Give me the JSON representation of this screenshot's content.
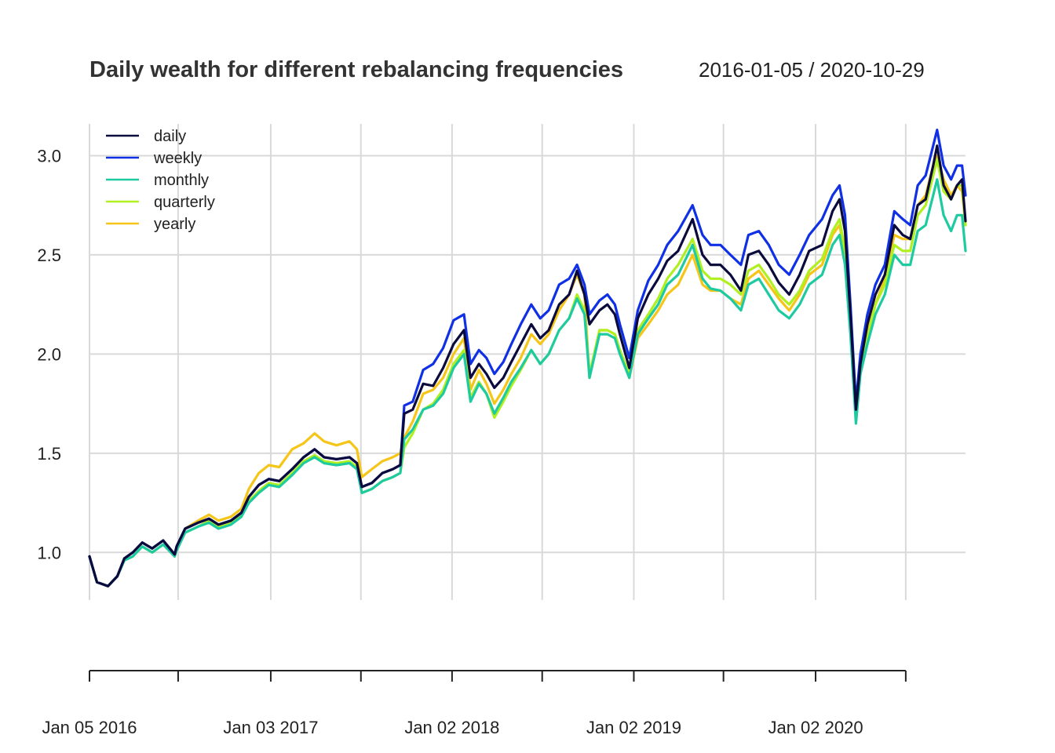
{
  "chart_data": {
    "type": "line",
    "title": "Daily wealth for different rebalancing frequencies",
    "date_range": "2016-01-05 / 2020-10-29",
    "x_ticks": [
      {
        "date": "2016-01-05",
        "label": "Jan 05 2016"
      },
      {
        "date": "2016-07-01",
        "label": ""
      },
      {
        "date": "2017-01-03",
        "label": "Jan 03 2017"
      },
      {
        "date": "2017-07-03",
        "label": ""
      },
      {
        "date": "2018-01-02",
        "label": "Jan 02 2018"
      },
      {
        "date": "2018-07-02",
        "label": ""
      },
      {
        "date": "2019-01-02",
        "label": "Jan 02 2019"
      },
      {
        "date": "2019-07-01",
        "label": ""
      },
      {
        "date": "2020-01-02",
        "label": "Jan 02 2020"
      },
      {
        "date": "2020-07-01",
        "label": ""
      }
    ],
    "y_ticks": [
      1.0,
      1.5,
      2.0,
      2.5,
      3.0
    ],
    "y_tick_labels": [
      "1.0",
      "1.5",
      "2.0",
      "2.5",
      "3.0"
    ],
    "ylim": [
      0.76,
      3.16
    ],
    "xlim": [
      "2016-01-05",
      "2020-10-29"
    ],
    "grid": true,
    "legend_position": "top-left",
    "x": [
      "2016-01-05",
      "2016-01-20",
      "2016-02-11",
      "2016-03-01",
      "2016-03-15",
      "2016-04-01",
      "2016-04-20",
      "2016-05-10",
      "2016-06-01",
      "2016-06-24",
      "2016-06-28",
      "2016-07-15",
      "2016-08-10",
      "2016-09-01",
      "2016-09-20",
      "2016-10-15",
      "2016-11-05",
      "2016-11-20",
      "2016-12-10",
      "2016-12-30",
      "2017-01-20",
      "2017-02-15",
      "2017-03-10",
      "2017-04-01",
      "2017-04-20",
      "2017-05-15",
      "2017-06-10",
      "2017-06-25",
      "2017-07-05",
      "2017-07-25",
      "2017-08-15",
      "2017-09-05",
      "2017-09-20",
      "2017-09-28",
      "2017-10-15",
      "2017-11-05",
      "2017-11-25",
      "2017-12-15",
      "2018-01-05",
      "2018-01-26",
      "2018-02-08",
      "2018-02-25",
      "2018-03-12",
      "2018-03-28",
      "2018-04-15",
      "2018-05-01",
      "2018-05-20",
      "2018-06-10",
      "2018-06-28",
      "2018-07-15",
      "2018-08-05",
      "2018-08-25",
      "2018-09-10",
      "2018-09-25",
      "2018-10-05",
      "2018-10-25",
      "2018-11-10",
      "2018-11-25",
      "2018-12-05",
      "2018-12-24",
      "2019-01-10",
      "2019-01-31",
      "2019-02-20",
      "2019-03-10",
      "2019-04-01",
      "2019-04-30",
      "2019-05-20",
      "2019-06-05",
      "2019-06-25",
      "2019-07-15",
      "2019-08-05",
      "2019-08-20",
      "2019-09-10",
      "2019-09-30",
      "2019-10-20",
      "2019-11-10",
      "2019-12-01",
      "2019-12-20",
      "2020-01-15",
      "2020-02-05",
      "2020-02-19",
      "2020-03-01",
      "2020-03-12",
      "2020-03-23",
      "2020-04-01",
      "2020-04-15",
      "2020-05-01",
      "2020-05-20",
      "2020-06-08",
      "2020-06-25",
      "2020-07-10",
      "2020-07-25",
      "2020-08-10",
      "2020-08-25",
      "2020-09-02",
      "2020-09-15",
      "2020-09-30",
      "2020-10-12",
      "2020-10-22",
      "2020-10-29"
    ],
    "series": [
      {
        "name": "daily",
        "color": "#0a0a3c",
        "values": [
          0.98,
          0.85,
          0.83,
          0.88,
          0.97,
          1.0,
          1.05,
          1.02,
          1.06,
          0.99,
          1.03,
          1.12,
          1.15,
          1.17,
          1.14,
          1.16,
          1.2,
          1.28,
          1.34,
          1.37,
          1.36,
          1.42,
          1.48,
          1.52,
          1.48,
          1.47,
          1.48,
          1.45,
          1.33,
          1.35,
          1.4,
          1.42,
          1.44,
          1.7,
          1.72,
          1.85,
          1.84,
          1.93,
          2.05,
          2.12,
          1.88,
          1.95,
          1.9,
          1.83,
          1.88,
          1.96,
          2.05,
          2.15,
          2.08,
          2.12,
          2.25,
          2.3,
          2.42,
          2.3,
          2.15,
          2.22,
          2.25,
          2.2,
          2.1,
          1.93,
          2.18,
          2.3,
          2.38,
          2.47,
          2.52,
          2.68,
          2.5,
          2.45,
          2.45,
          2.4,
          2.32,
          2.5,
          2.52,
          2.45,
          2.36,
          2.3,
          2.4,
          2.52,
          2.55,
          2.72,
          2.78,
          2.62,
          2.2,
          1.72,
          1.95,
          2.15,
          2.3,
          2.4,
          2.65,
          2.6,
          2.58,
          2.75,
          2.78,
          2.95,
          3.05,
          2.85,
          2.78,
          2.85,
          2.88,
          2.67
        ]
      },
      {
        "name": "weekly",
        "color": "#1030e6",
        "values": [
          0.98,
          0.85,
          0.83,
          0.88,
          0.97,
          1.0,
          1.05,
          1.02,
          1.06,
          0.99,
          1.03,
          1.12,
          1.15,
          1.17,
          1.14,
          1.16,
          1.2,
          1.28,
          1.34,
          1.37,
          1.36,
          1.42,
          1.48,
          1.52,
          1.48,
          1.47,
          1.48,
          1.45,
          1.33,
          1.35,
          1.4,
          1.42,
          1.44,
          1.74,
          1.76,
          1.92,
          1.95,
          2.03,
          2.17,
          2.2,
          1.95,
          2.02,
          1.98,
          1.9,
          1.96,
          2.05,
          2.15,
          2.25,
          2.18,
          2.22,
          2.35,
          2.38,
          2.45,
          2.35,
          2.2,
          2.27,
          2.3,
          2.25,
          2.15,
          1.98,
          2.22,
          2.37,
          2.45,
          2.55,
          2.62,
          2.75,
          2.6,
          2.55,
          2.55,
          2.5,
          2.45,
          2.6,
          2.62,
          2.55,
          2.45,
          2.4,
          2.5,
          2.6,
          2.68,
          2.8,
          2.85,
          2.7,
          2.25,
          1.75,
          2.0,
          2.2,
          2.35,
          2.45,
          2.72,
          2.68,
          2.65,
          2.85,
          2.9,
          3.05,
          3.13,
          2.95,
          2.88,
          2.95,
          2.95,
          2.8
        ]
      },
      {
        "name": "monthly",
        "color": "#1ecaa0",
        "values": [
          0.98,
          0.85,
          0.83,
          0.88,
          0.96,
          0.98,
          1.03,
          1.0,
          1.04,
          0.98,
          1.01,
          1.1,
          1.13,
          1.15,
          1.12,
          1.14,
          1.18,
          1.25,
          1.3,
          1.34,
          1.33,
          1.39,
          1.45,
          1.48,
          1.45,
          1.44,
          1.45,
          1.42,
          1.3,
          1.32,
          1.36,
          1.38,
          1.4,
          1.57,
          1.62,
          1.72,
          1.74,
          1.8,
          1.93,
          2.0,
          1.76,
          1.85,
          1.8,
          1.7,
          1.78,
          1.86,
          1.93,
          2.02,
          1.95,
          2.0,
          2.12,
          2.18,
          2.28,
          2.2,
          1.88,
          2.1,
          2.1,
          2.08,
          2.0,
          1.88,
          2.1,
          2.18,
          2.25,
          2.35,
          2.4,
          2.55,
          2.38,
          2.33,
          2.32,
          2.28,
          2.22,
          2.35,
          2.38,
          2.3,
          2.22,
          2.18,
          2.25,
          2.35,
          2.4,
          2.55,
          2.6,
          2.45,
          2.1,
          1.65,
          1.9,
          2.05,
          2.2,
          2.3,
          2.5,
          2.45,
          2.45,
          2.62,
          2.65,
          2.8,
          2.88,
          2.7,
          2.62,
          2.7,
          2.7,
          2.52
        ]
      },
      {
        "name": "quarterly",
        "color": "#b0f020",
        "values": [
          0.98,
          0.85,
          0.83,
          0.88,
          0.96,
          0.98,
          1.03,
          1.0,
          1.04,
          0.98,
          1.01,
          1.1,
          1.13,
          1.16,
          1.13,
          1.15,
          1.19,
          1.26,
          1.31,
          1.35,
          1.34,
          1.4,
          1.46,
          1.49,
          1.46,
          1.45,
          1.46,
          1.43,
          1.3,
          1.32,
          1.36,
          1.38,
          1.4,
          1.53,
          1.6,
          1.72,
          1.75,
          1.82,
          1.95,
          2.02,
          1.78,
          1.86,
          1.8,
          1.68,
          1.76,
          1.84,
          1.92,
          2.02,
          1.95,
          2.0,
          2.12,
          2.18,
          2.3,
          2.22,
          1.9,
          2.12,
          2.12,
          2.1,
          2.02,
          1.9,
          2.12,
          2.2,
          2.28,
          2.38,
          2.45,
          2.58,
          2.42,
          2.38,
          2.38,
          2.35,
          2.3,
          2.42,
          2.45,
          2.38,
          2.3,
          2.25,
          2.32,
          2.42,
          2.48,
          2.62,
          2.68,
          2.52,
          2.15,
          1.7,
          1.92,
          2.08,
          2.25,
          2.35,
          2.55,
          2.52,
          2.52,
          2.7,
          2.75,
          2.9,
          2.98,
          2.82,
          2.78,
          2.85,
          2.85,
          2.65
        ]
      },
      {
        "name": "yearly",
        "color": "#f5c518",
        "values": [
          0.98,
          0.85,
          0.83,
          0.88,
          0.97,
          1.0,
          1.05,
          1.02,
          1.06,
          0.99,
          1.03,
          1.12,
          1.16,
          1.19,
          1.16,
          1.18,
          1.22,
          1.32,
          1.4,
          1.44,
          1.43,
          1.52,
          1.55,
          1.6,
          1.56,
          1.54,
          1.56,
          1.52,
          1.38,
          1.42,
          1.46,
          1.48,
          1.5,
          1.58,
          1.66,
          1.8,
          1.82,
          1.88,
          2.0,
          2.08,
          1.82,
          1.92,
          1.85,
          1.75,
          1.82,
          1.9,
          1.98,
          2.1,
          2.05,
          2.1,
          2.22,
          2.3,
          2.4,
          2.3,
          1.88,
          2.12,
          2.12,
          2.1,
          2.02,
          1.88,
          2.08,
          2.15,
          2.22,
          2.3,
          2.35,
          2.5,
          2.35,
          2.32,
          2.32,
          2.28,
          2.25,
          2.38,
          2.42,
          2.35,
          2.28,
          2.22,
          2.3,
          2.4,
          2.45,
          2.6,
          2.65,
          2.5,
          2.15,
          1.7,
          1.93,
          2.1,
          2.25,
          2.38,
          2.6,
          2.58,
          2.58,
          2.75,
          2.8,
          2.95,
          3.0,
          2.88,
          2.8,
          2.85,
          2.82,
          2.65
        ]
      }
    ]
  }
}
